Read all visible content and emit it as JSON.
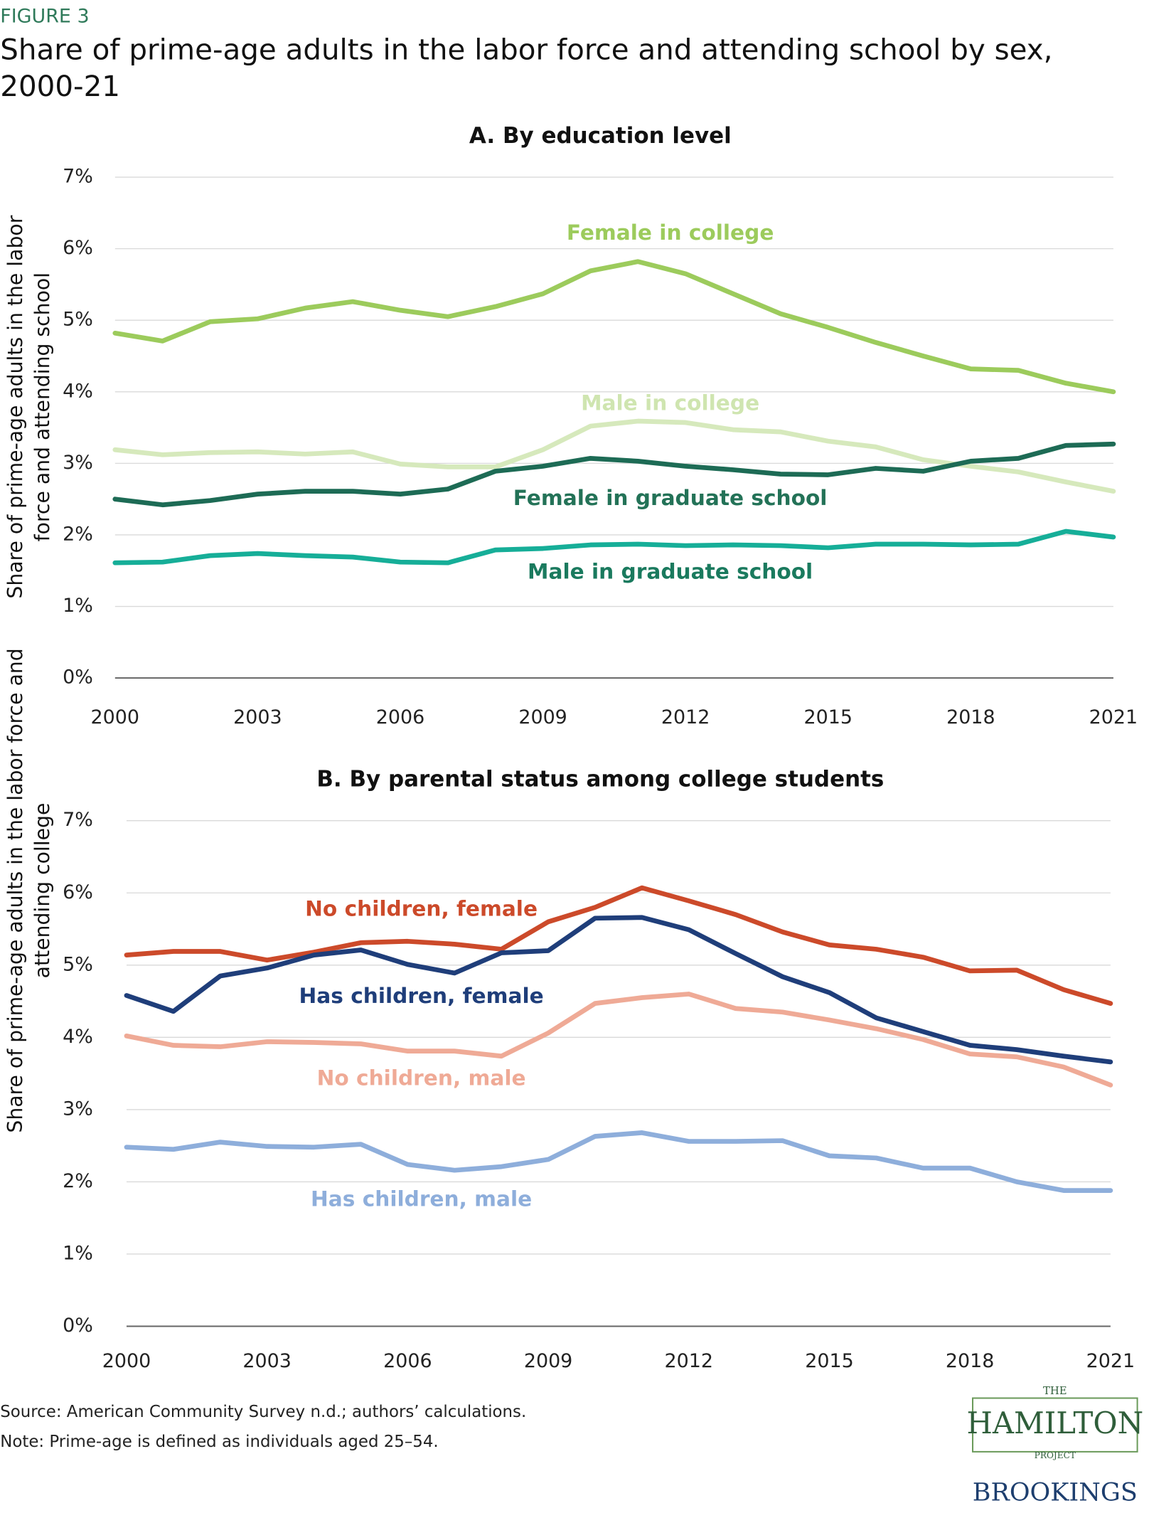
{
  "figure_label": "FIGURE 3",
  "title_lines": [
    "Share of prime-age adults in the labor force and attending school by sex,",
    "2000-21"
  ],
  "source": "Source: American Community Survey n.d.; authors’ calculations.",
  "note": "Note: Prime-age is defined as individuals aged 25–54.",
  "logos": {
    "hamilton_top": "THE",
    "hamilton": "HAMILTON",
    "hamilton_bottom": "PROJECT",
    "brookings": "BROOKINGS"
  },
  "chart_data": [
    {
      "type": "line",
      "title": "A. By education level",
      "y_label": [
        "Share of prime-age adults in the labor",
        "force and attending school"
      ],
      "x": [
        2000,
        2001,
        2002,
        2003,
        2004,
        2005,
        2006,
        2007,
        2008,
        2009,
        2010,
        2011,
        2012,
        2013,
        2014,
        2015,
        2016,
        2017,
        2018,
        2019,
        2020,
        2021
      ],
      "xlim": [
        2000,
        2021
      ],
      "xticks": [
        2000,
        2003,
        2006,
        2009,
        2012,
        2015,
        2018,
        2021
      ],
      "ylim": [
        0,
        7
      ],
      "yticks": [
        {
          "value": 0,
          "label": "0%"
        },
        {
          "value": 1,
          "label": "1%"
        },
        {
          "value": 2,
          "label": "2%"
        },
        {
          "value": 3,
          "label": "3%"
        },
        {
          "value": 4,
          "label": "4%"
        },
        {
          "value": 5,
          "label": "5%"
        },
        {
          "value": 6,
          "label": "6%"
        },
        {
          "value": 7,
          "label": "7%"
        }
      ],
      "grid": true,
      "series": [
        {
          "name": "Female in college",
          "color": "#9ccb5c",
          "label_color": "#9ccb5c",
          "values": [
            4.82,
            4.71,
            4.98,
            5.02,
            5.17,
            5.26,
            5.14,
            5.05,
            5.19,
            5.37,
            5.69,
            5.82,
            5.65,
            5.37,
            5.09,
            4.9,
            4.69,
            4.5,
            4.32,
            4.3,
            4.12,
            4.0
          ]
        },
        {
          "name": "Male in college",
          "color": "#d6e9bc",
          "label_color": "#cfe5b0",
          "values": [
            3.19,
            3.12,
            3.15,
            3.16,
            3.13,
            3.16,
            2.99,
            2.95,
            2.95,
            3.19,
            3.52,
            3.59,
            3.57,
            3.47,
            3.44,
            3.31,
            3.23,
            3.05,
            2.96,
            2.88,
            2.74,
            2.61
          ]
        },
        {
          "name": "Female in graduate school",
          "color": "#1d6b55",
          "label_color": "#237257",
          "values": [
            2.5,
            2.42,
            2.48,
            2.57,
            2.61,
            2.61,
            2.57,
            2.64,
            2.89,
            2.96,
            3.07,
            3.03,
            2.96,
            2.91,
            2.85,
            2.84,
            2.93,
            2.89,
            3.03,
            3.07,
            3.25,
            3.27
          ]
        },
        {
          "name": "Male in graduate school",
          "color": "#16ae98",
          "label_color": "#1a7a5e",
          "values": [
            1.61,
            1.62,
            1.71,
            1.74,
            1.71,
            1.69,
            1.62,
            1.61,
            1.79,
            1.81,
            1.86,
            1.87,
            1.85,
            1.86,
            1.85,
            1.82,
            1.87,
            1.87,
            1.86,
            1.87,
            2.05,
            1.97
          ]
        }
      ]
    },
    {
      "type": "line",
      "title": "B. By parental status among college students",
      "y_label": [
        "Share of prime-age adults in the labor force and",
        "attending college"
      ],
      "x": [
        2000,
        2001,
        2002,
        2003,
        2004,
        2005,
        2006,
        2007,
        2008,
        2009,
        2010,
        2011,
        2012,
        2013,
        2014,
        2015,
        2016,
        2017,
        2018,
        2019,
        2020,
        2021
      ],
      "xlim": [
        2000,
        2021
      ],
      "xticks": [
        2000,
        2003,
        2006,
        2009,
        2012,
        2015,
        2018,
        2021
      ],
      "ylim": [
        0,
        7
      ],
      "yticks": [
        {
          "value": 0,
          "label": "0%"
        },
        {
          "value": 1,
          "label": "1%"
        },
        {
          "value": 2,
          "label": "2%"
        },
        {
          "value": 3,
          "label": "3%"
        },
        {
          "value": 4,
          "label": "4%"
        },
        {
          "value": 5,
          "label": "5%"
        },
        {
          "value": 6,
          "label": "6%"
        },
        {
          "value": 7,
          "label": "7%"
        }
      ],
      "grid": true,
      "series": [
        {
          "name": "No children, female",
          "color": "#cc4a2a",
          "label_color": "#cc4a2a",
          "values": [
            5.14,
            5.19,
            5.19,
            5.07,
            5.18,
            5.31,
            5.33,
            5.29,
            5.22,
            5.6,
            5.8,
            6.07,
            5.89,
            5.7,
            5.46,
            5.28,
            5.22,
            5.11,
            4.92,
            4.93,
            4.66,
            4.47
          ]
        },
        {
          "name": "Has children, female",
          "color": "#1f3e7a",
          "label_color": "#1f3e7a",
          "values": [
            4.58,
            4.36,
            4.85,
            4.96,
            5.14,
            5.21,
            5.01,
            4.89,
            5.17,
            5.2,
            5.65,
            5.66,
            5.49,
            5.16,
            4.84,
            4.62,
            4.27,
            4.08,
            3.89,
            3.83,
            3.74,
            3.66
          ]
        },
        {
          "name": "No children, male",
          "color": "#efaa96",
          "label_color": "#efaa96",
          "values": [
            4.02,
            3.89,
            3.87,
            3.94,
            3.93,
            3.91,
            3.81,
            3.81,
            3.74,
            4.06,
            4.47,
            4.55,
            4.6,
            4.4,
            4.35,
            4.24,
            4.12,
            3.97,
            3.77,
            3.73,
            3.59,
            3.34
          ]
        },
        {
          "name": "Has children, male",
          "color": "#8eaedb",
          "label_color": "#8eaedb",
          "values": [
            2.48,
            2.45,
            2.55,
            2.49,
            2.48,
            2.52,
            2.24,
            2.16,
            2.21,
            2.31,
            2.63,
            2.68,
            2.56,
            2.56,
            2.57,
            2.36,
            2.33,
            2.19,
            2.19,
            2.0,
            1.88,
            1.88
          ]
        }
      ]
    }
  ]
}
